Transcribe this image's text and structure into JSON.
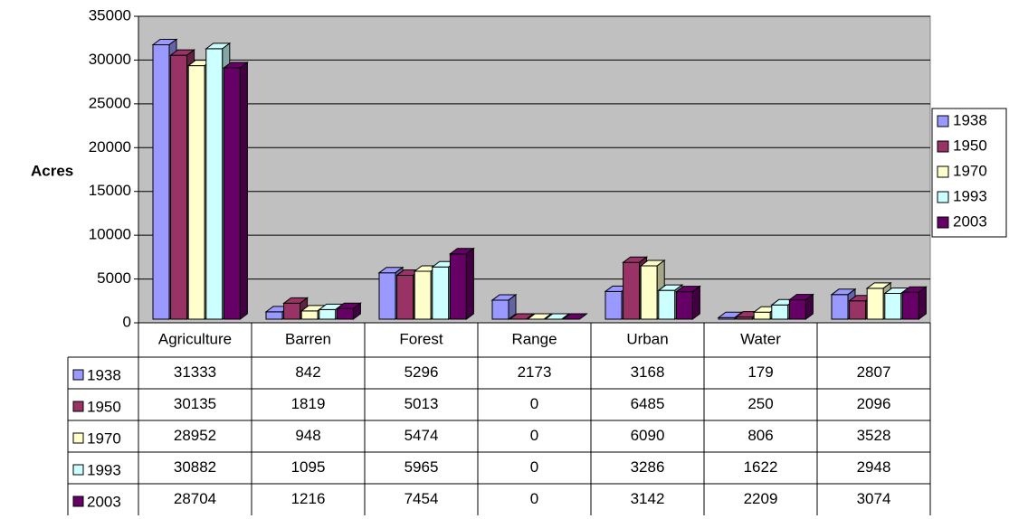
{
  "chart_data": {
    "type": "bar3d",
    "ylabel": "Acres",
    "categories": [
      "Agriculture",
      "Barren",
      "Forest",
      "Range",
      "Urban",
      "Water",
      null
    ],
    "series": [
      {
        "name": "1938",
        "color": "#9999ff",
        "values": [
          31333,
          842,
          5296,
          2173,
          3168,
          179,
          2807
        ]
      },
      {
        "name": "1950",
        "color": "#993366",
        "values": [
          30135,
          1819,
          5013,
          0,
          6485,
          250,
          2096
        ]
      },
      {
        "name": "1970",
        "color": "#ffffcc",
        "values": [
          28952,
          948,
          5474,
          0,
          6090,
          806,
          3528
        ]
      },
      {
        "name": "1993",
        "color": "#ccffff",
        "values": [
          30882,
          1095,
          5965,
          0,
          3286,
          1622,
          2948
        ]
      },
      {
        "name": "2003",
        "color": "#660066",
        "values": [
          28704,
          1216,
          7454,
          0,
          3142,
          2209,
          3074
        ]
      }
    ],
    "ylim": [
      0,
      35000
    ],
    "yticks": [
      0,
      5000,
      10000,
      15000,
      20000,
      25000,
      30000,
      35000
    ],
    "grid": true,
    "legend": "right",
    "data_table": true
  }
}
